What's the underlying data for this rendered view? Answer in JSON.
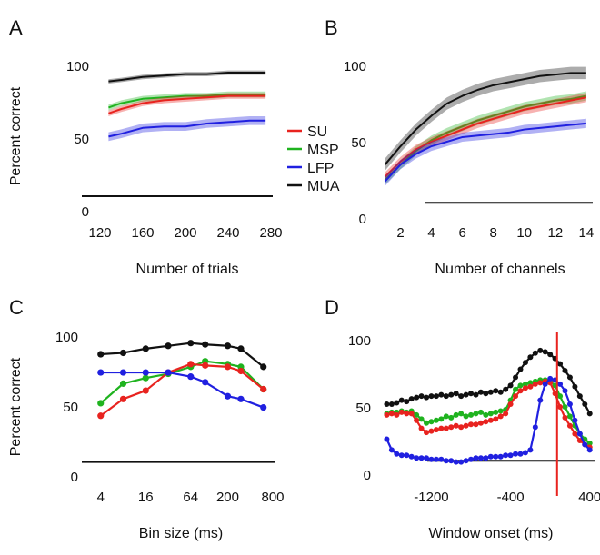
{
  "colors": {
    "SU": "#e8231f",
    "MSP": "#1fb31f",
    "LFP": "#2020e0",
    "MUA": "#111111",
    "axis": "#111111"
  },
  "legend": [
    {
      "name": "SU",
      "color": "#e8231f"
    },
    {
      "name": "MSP",
      "color": "#1fb31f"
    },
    {
      "name": "LFP",
      "color": "#2020e0"
    },
    {
      "name": "MUA",
      "color": "#111111"
    }
  ],
  "chart_data": [
    {
      "panel": "A",
      "type": "line",
      "xlabel": "Number of trials",
      "ylabel": "Percent correct",
      "xlim": [
        120,
        280
      ],
      "ylim": [
        0,
        100
      ],
      "xticks": [
        120,
        160,
        200,
        240,
        280
      ],
      "yticks": [
        0,
        50,
        100
      ],
      "chance": 10,
      "x": [
        128,
        140,
        160,
        180,
        200,
        220,
        240,
        260,
        275
      ],
      "series": [
        {
          "name": "MUA",
          "values": [
            89,
            90,
            92,
            93,
            94,
            94,
            95,
            95,
            95
          ],
          "band": 1.5
        },
        {
          "name": "MSP",
          "values": [
            71,
            74,
            77,
            78,
            79,
            79,
            80,
            80,
            80
          ],
          "band": 2
        },
        {
          "name": "SU",
          "values": [
            67,
            70,
            74,
            76,
            77,
            78,
            79,
            79,
            79
          ],
          "band": 2
        },
        {
          "name": "LFP",
          "values": [
            51,
            53,
            57,
            58,
            58,
            60,
            61,
            62,
            62
          ],
          "band": 3
        }
      ]
    },
    {
      "panel": "B",
      "type": "line",
      "xlabel": "Number of channels",
      "ylabel": "",
      "xlim": [
        0.5,
        14.3
      ],
      "ylim": [
        0,
        100
      ],
      "xticks": [
        2,
        4,
        6,
        8,
        10,
        12,
        14
      ],
      "yticks": [
        0,
        50,
        100
      ],
      "chance": 10,
      "x": [
        1,
        2,
        3,
        4,
        5,
        6,
        7,
        8,
        9,
        10,
        11,
        12,
        13,
        14
      ],
      "series": [
        {
          "name": "MUA",
          "values": [
            35,
            47,
            58,
            67,
            75,
            80,
            84,
            87,
            89,
            91,
            93,
            94,
            95,
            95
          ],
          "band": 4
        },
        {
          "name": "MSP",
          "values": [
            25,
            35,
            44,
            51,
            56,
            60,
            64,
            67,
            70,
            73,
            75,
            77,
            78,
            80
          ],
          "band": 3
        },
        {
          "name": "SU",
          "values": [
            27,
            37,
            45,
            50,
            54,
            58,
            62,
            65,
            68,
            71,
            73,
            75,
            77,
            79
          ],
          "band": 3
        },
        {
          "name": "LFP",
          "values": [
            24,
            35,
            42,
            47,
            50,
            53,
            54,
            55,
            56,
            58,
            59,
            60,
            61,
            62
          ],
          "band": 3
        }
      ]
    },
    {
      "panel": "C",
      "type": "line",
      "xlabel": "Bin size (ms)",
      "ylabel": "Percent correct",
      "xscale": "log2",
      "xlim": [
        2.8,
        800
      ],
      "ylim": [
        0,
        100
      ],
      "xticks": [
        4,
        16,
        64,
        200,
        800
      ],
      "yticks": [
        0,
        50,
        100
      ],
      "chance": 10,
      "x": [
        4,
        8,
        16,
        32,
        64,
        100,
        200,
        300,
        600
      ],
      "series": [
        {
          "name": "MUA",
          "values": [
            87,
            88,
            91,
            93,
            95,
            94,
            93,
            91,
            78
          ]
        },
        {
          "name": "MSP",
          "values": [
            52,
            66,
            70,
            73,
            78,
            82,
            80,
            78,
            62
          ]
        },
        {
          "name": "SU",
          "values": [
            43,
            55,
            61,
            74,
            80,
            79,
            78,
            75,
            62
          ]
        },
        {
          "name": "LFP",
          "values": [
            74,
            74,
            74,
            74,
            71,
            67,
            57,
            55,
            49
          ]
        }
      ]
    },
    {
      "panel": "D",
      "type": "line",
      "xlabel": "Window onset (ms)",
      "ylabel": "",
      "xlim": [
        -1700,
        430
      ],
      "ylim": [
        0,
        100
      ],
      "xticks": [
        -1200,
        -400,
        400
      ],
      "yticks": [
        0,
        50,
        100
      ],
      "chance": 10,
      "event_line_x": 70,
      "x": [
        -1650,
        -1600,
        -1550,
        -1500,
        -1450,
        -1400,
        -1350,
        -1300,
        -1250,
        -1200,
        -1150,
        -1100,
        -1050,
        -1000,
        -950,
        -900,
        -850,
        -800,
        -750,
        -700,
        -650,
        -600,
        -550,
        -500,
        -450,
        -400,
        -350,
        -300,
        -250,
        -200,
        -150,
        -100,
        -50,
        0,
        50,
        100,
        150,
        200,
        250,
        300,
        350,
        400
      ],
      "series": [
        {
          "name": "MUA",
          "values": [
            52,
            52,
            53,
            55,
            54,
            56,
            57,
            58,
            57,
            58,
            58,
            59,
            58,
            59,
            60,
            58,
            59,
            60,
            59,
            61,
            60,
            61,
            62,
            61,
            63,
            66,
            72,
            78,
            83,
            87,
            90,
            92,
            91,
            89,
            86,
            82,
            77,
            72,
            65,
            58,
            52,
            45
          ]
        },
        {
          "name": "MSP",
          "values": [
            45,
            46,
            46,
            47,
            46,
            47,
            44,
            41,
            38,
            39,
            40,
            41,
            43,
            42,
            44,
            45,
            43,
            44,
            45,
            46,
            44,
            45,
            46,
            47,
            48,
            55,
            63,
            66,
            67,
            68,
            69,
            70,
            70,
            69,
            66,
            58,
            50,
            43,
            36,
            30,
            26,
            23
          ]
        },
        {
          "name": "SU",
          "values": [
            44,
            45,
            44,
            46,
            45,
            45,
            40,
            34,
            31,
            32,
            33,
            34,
            34,
            35,
            36,
            35,
            36,
            37,
            37,
            38,
            39,
            40,
            41,
            43,
            45,
            52,
            58,
            62,
            64,
            65,
            67,
            68,
            69,
            68,
            60,
            50,
            42,
            36,
            30,
            25,
            22,
            20
          ]
        },
        {
          "name": "LFP",
          "values": [
            26,
            18,
            15,
            14,
            14,
            13,
            12,
            12,
            12,
            11,
            11,
            11,
            10,
            10,
            9,
            9,
            10,
            11,
            12,
            12,
            12,
            13,
            13,
            13,
            14,
            14,
            15,
            15,
            16,
            18,
            35,
            55,
            67,
            71,
            70,
            67,
            62,
            52,
            40,
            30,
            22,
            18
          ]
        }
      ]
    }
  ]
}
